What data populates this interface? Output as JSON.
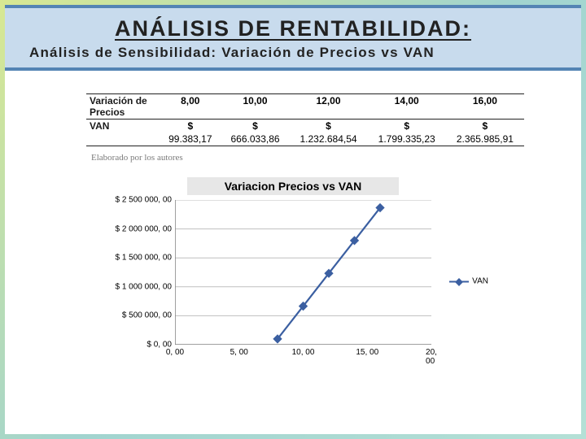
{
  "header": {
    "title": "ANÁLISIS DE RENTABILIDAD:",
    "subtitle": "Análisis de Sensibilidad: Variación de Precios vs VAN"
  },
  "table": {
    "row1_label": "Variación de Precios",
    "row2_label": "VAN",
    "cols": [
      {
        "price": "8,00",
        "currency": "$",
        "van": "99.383,17"
      },
      {
        "price": "10,00",
        "currency": "$",
        "van": "666.033,86"
      },
      {
        "price": "12,00",
        "currency": "$",
        "van": "1.232.684,54"
      },
      {
        "price": "14,00",
        "currency": "$",
        "van": "1.799.335,23"
      },
      {
        "price": "16,00",
        "currency": "$",
        "van": "2.365.985,91"
      }
    ],
    "source_note": "Elaborado por los autores"
  },
  "chart": {
    "title": "Variacion Precios vs VAN",
    "type": "line",
    "series_name": "VAN",
    "line_color": "#3b5fa1",
    "marker_shape": "diamond",
    "marker_size": 8,
    "grid_color": "#bfbfbf",
    "axis_color": "#808080",
    "background_color": "#ffffff",
    "title_bg": "#e7e7e7",
    "xlim": [
      0,
      20
    ],
    "ylim": [
      0,
      2500000
    ],
    "xtick_step": 5,
    "ytick_step": 500000,
    "xticks": [
      "0, 00",
      "5, 00",
      "10, 00",
      "15, 00",
      "20, 00"
    ],
    "yticks": [
      "$ 0, 00",
      "$ 500 000, 00",
      "$ 1 000 000, 00",
      "$ 1 500 000, 00",
      "$ 2 000 000, 00",
      "$ 2 500 000, 00"
    ],
    "points": [
      {
        "x": 8,
        "y": 99383.17
      },
      {
        "x": 10,
        "y": 666033.86
      },
      {
        "x": 12,
        "y": 1232684.54
      },
      {
        "x": 14,
        "y": 1799335.23
      },
      {
        "x": 16,
        "y": 2365985.91
      }
    ],
    "label_fontsize": 10,
    "title_fontsize": 14
  },
  "colors": {
    "band_bg": "#c8dbed",
    "band_border": "#5484b4",
    "slide_grad_a": "#d8e892",
    "slide_grad_b": "#a1d4cf"
  }
}
